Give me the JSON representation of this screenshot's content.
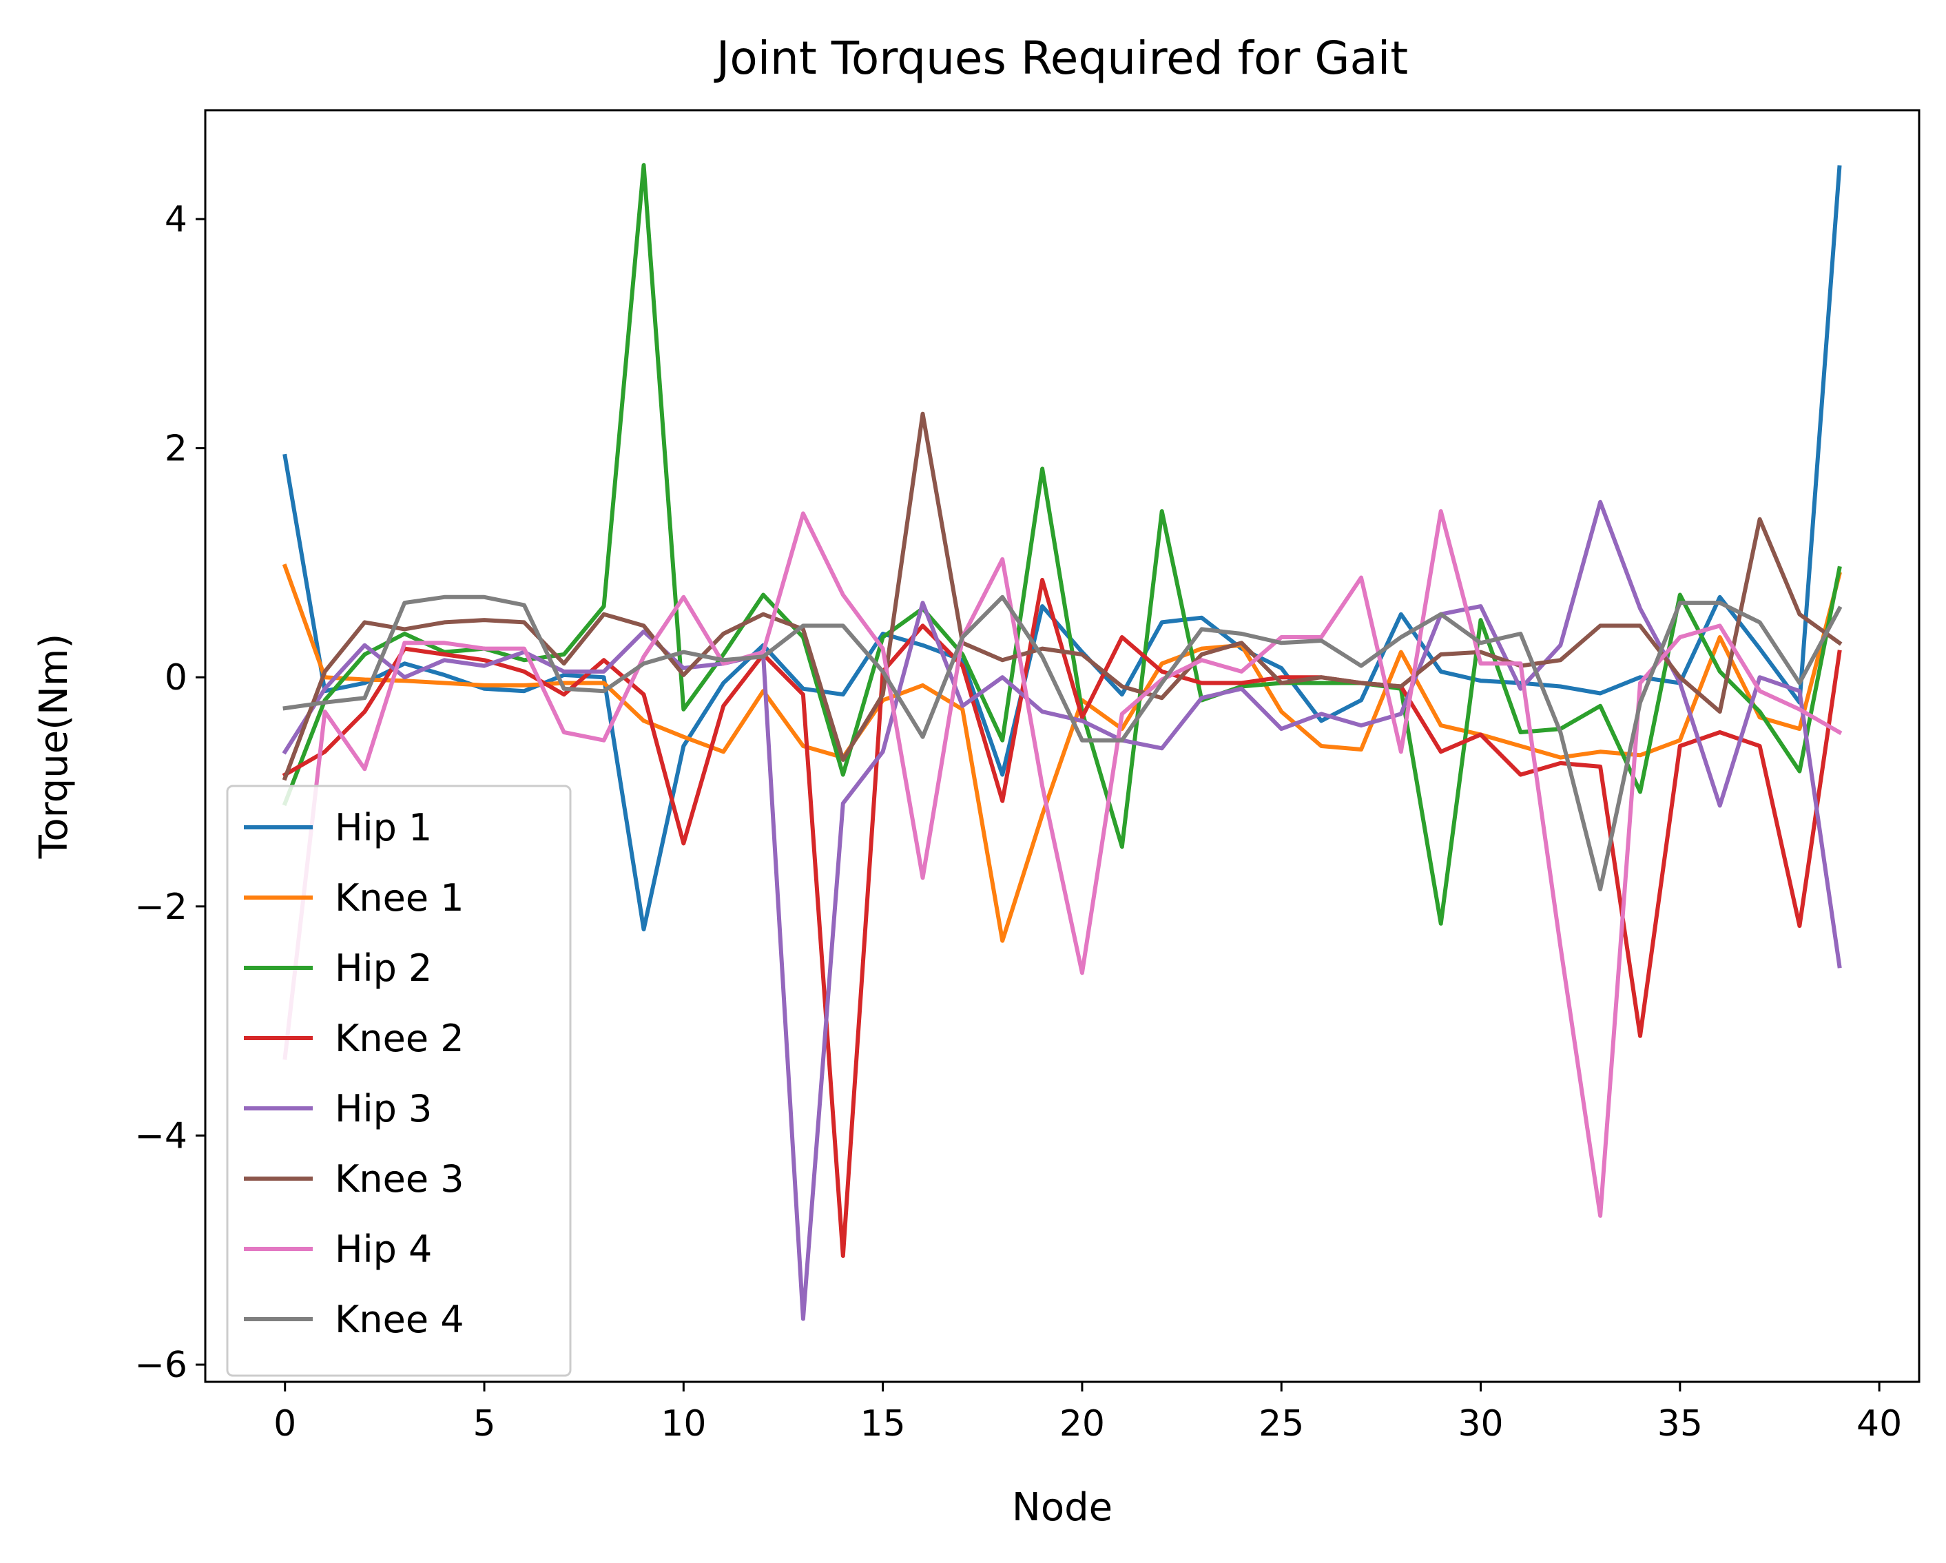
{
  "chart_data": {
    "type": "line",
    "title": "Joint Torques Required for Gait",
    "xlabel": "Node",
    "ylabel": "Torque(Nm)",
    "xlim": [
      -2,
      41
    ],
    "ylim": [
      -6.15,
      4.95
    ],
    "xticks": [
      0,
      5,
      10,
      15,
      20,
      25,
      30,
      35,
      40
    ],
    "yticks": [
      -6,
      -4,
      -2,
      0,
      2,
      4
    ],
    "ytick_labels": [
      "−6",
      "−4",
      "−2",
      "0",
      "2",
      "4"
    ],
    "xtick_labels": [
      "0",
      "5",
      "10",
      "15",
      "20",
      "25",
      "30",
      "35",
      "40"
    ],
    "legend_position": "lower-left",
    "series": [
      {
        "name": "Hip 1",
        "color": "#1f77b4",
        "values": [
          1.93,
          -0.12,
          -0.05,
          0.12,
          0.02,
          -0.1,
          -0.12,
          0.02,
          0.0,
          -2.2,
          -0.6,
          -0.05,
          0.28,
          -0.1,
          -0.15,
          0.38,
          0.28,
          0.15,
          -0.85,
          0.62,
          0.22,
          -0.15,
          0.48,
          0.52,
          0.25,
          0.08,
          -0.38,
          -0.2,
          0.55,
          0.05,
          -0.03,
          -0.05,
          -0.08,
          -0.14,
          0.0,
          -0.05,
          0.7,
          0.25,
          -0.22,
          4.45
        ]
      },
      {
        "name": "Knee 1",
        "color": "#ff7f0e",
        "values": [
          0.97,
          0.0,
          -0.02,
          -0.03,
          -0.05,
          -0.07,
          -0.07,
          -0.05,
          -0.05,
          -0.38,
          -0.52,
          -0.65,
          -0.12,
          -0.6,
          -0.7,
          -0.2,
          -0.07,
          -0.28,
          -2.3,
          -1.2,
          -0.2,
          -0.45,
          0.12,
          0.25,
          0.28,
          -0.3,
          -0.6,
          -0.63,
          0.22,
          -0.42,
          -0.5,
          -0.6,
          -0.7,
          -0.65,
          -0.68,
          -0.55,
          0.35,
          -0.35,
          -0.45,
          0.9
        ]
      },
      {
        "name": "Hip 2",
        "color": "#2ca02c",
        "values": [
          -1.1,
          -0.2,
          0.2,
          0.38,
          0.22,
          0.25,
          0.15,
          0.2,
          0.62,
          4.47,
          -0.28,
          0.2,
          0.72,
          0.35,
          -0.85,
          0.35,
          0.6,
          0.2,
          -0.55,
          1.82,
          -0.3,
          -1.48,
          1.45,
          -0.2,
          -0.08,
          -0.05,
          -0.05,
          -0.05,
          -0.1,
          -2.15,
          0.5,
          -0.48,
          -0.45,
          -0.25,
          -1.0,
          0.72,
          0.05,
          -0.3,
          -0.82,
          0.95
        ]
      },
      {
        "name": "Knee 2",
        "color": "#d62728",
        "values": [
          -0.85,
          -0.65,
          -0.3,
          0.25,
          0.2,
          0.15,
          0.05,
          -0.15,
          0.15,
          -0.15,
          -1.45,
          -0.25,
          0.2,
          -0.15,
          -5.05,
          0.05,
          0.45,
          0.1,
          -1.08,
          0.85,
          -0.35,
          0.35,
          0.05,
          -0.05,
          -0.05,
          0.0,
          0.0,
          -0.05,
          -0.08,
          -0.65,
          -0.5,
          -0.85,
          -0.75,
          -0.78,
          -3.13,
          -0.6,
          -0.48,
          -0.6,
          -2.17,
          0.22
        ]
      },
      {
        "name": "Hip 3",
        "color": "#9467bd",
        "values": [
          -0.65,
          -0.1,
          0.28,
          0.0,
          0.15,
          0.1,
          0.22,
          0.05,
          0.05,
          0.4,
          0.08,
          0.12,
          0.2,
          -5.6,
          -1.1,
          -0.65,
          0.65,
          -0.25,
          0.0,
          -0.3,
          -0.38,
          -0.55,
          -0.62,
          -0.18,
          -0.1,
          -0.45,
          -0.32,
          -0.42,
          -0.32,
          0.55,
          0.62,
          -0.1,
          0.28,
          1.53,
          0.6,
          -0.05,
          -1.12,
          0.0,
          -0.12,
          -2.52
        ]
      },
      {
        "name": "Knee 3",
        "color": "#8c564b",
        "values": [
          -0.88,
          0.05,
          0.48,
          0.42,
          0.48,
          0.5,
          0.48,
          0.12,
          0.55,
          0.45,
          0.02,
          0.38,
          0.55,
          0.42,
          -0.72,
          -0.15,
          2.3,
          0.3,
          0.15,
          0.25,
          0.2,
          -0.08,
          -0.18,
          0.2,
          0.3,
          -0.05,
          0.0,
          -0.05,
          -0.08,
          0.2,
          0.22,
          0.1,
          0.15,
          0.45,
          0.45,
          0.0,
          -0.3,
          1.38,
          0.55,
          0.3
        ]
      },
      {
        "name": "Hip 4",
        "color": "#e377c2",
        "values": [
          -3.32,
          -0.3,
          -0.8,
          0.3,
          0.3,
          0.25,
          0.25,
          -0.48,
          -0.55,
          0.18,
          0.7,
          0.12,
          0.22,
          1.43,
          0.72,
          0.25,
          -1.75,
          0.35,
          1.03,
          -0.95,
          -2.58,
          -0.32,
          -0.02,
          0.15,
          0.05,
          0.35,
          0.35,
          0.87,
          -0.65,
          1.45,
          0.12,
          0.12,
          -2.35,
          -4.7,
          -0.05,
          0.35,
          0.45,
          -0.12,
          -0.28,
          -0.48
        ]
      },
      {
        "name": "Knee 4",
        "color": "#7f7f7f",
        "values": [
          -0.27,
          -0.22,
          -0.18,
          0.65,
          0.7,
          0.7,
          0.63,
          -0.1,
          -0.12,
          0.12,
          0.22,
          0.15,
          0.18,
          0.45,
          0.45,
          0.05,
          -0.52,
          0.35,
          0.7,
          0.18,
          -0.55,
          -0.55,
          -0.05,
          0.42,
          0.38,
          0.3,
          0.32,
          0.1,
          0.35,
          0.55,
          0.3,
          0.38,
          -0.48,
          -1.85,
          -0.22,
          0.65,
          0.65,
          0.48,
          -0.05,
          0.6
        ]
      }
    ]
  }
}
